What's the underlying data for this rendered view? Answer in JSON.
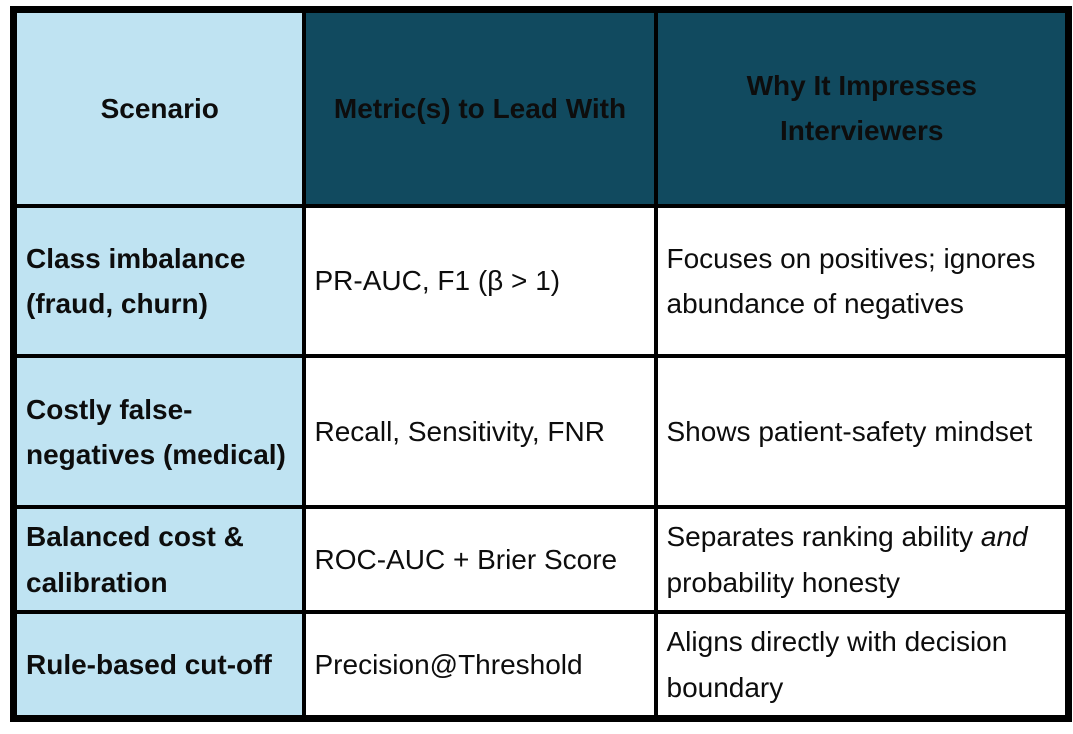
{
  "table": {
    "headers": {
      "scenario": "Scenario",
      "metric": "Metric(s) to Lead With",
      "why": "Why It Impresses Interviewers"
    },
    "rows": [
      {
        "scenario": "Class imbalance (fraud, churn)",
        "metric": "PR-AUC, F1 (β > 1)",
        "why": "Focuses on positives; ignores abundance of negatives"
      },
      {
        "scenario": "Costly false-negatives (medical)",
        "metric": "Recall, Sensitivity, FNR",
        "why": "Shows patient-safety mindset"
      },
      {
        "scenario": "Balanced cost & calibration",
        "metric": "ROC-AUC + Brier Score",
        "why_prefix": "Separates ranking ability ",
        "why_italic": "and",
        "why_suffix": " probability honesty"
      },
      {
        "scenario": "Rule-based cut-off",
        "metric": "Precision@Threshold",
        "why": "Aligns directly with decision boundary"
      }
    ],
    "colors": {
      "header_dark": "#114a5f",
      "scenario_light_blue": "#bfe3f2",
      "border_black": "#000000",
      "text": "#0d0d0d"
    }
  }
}
